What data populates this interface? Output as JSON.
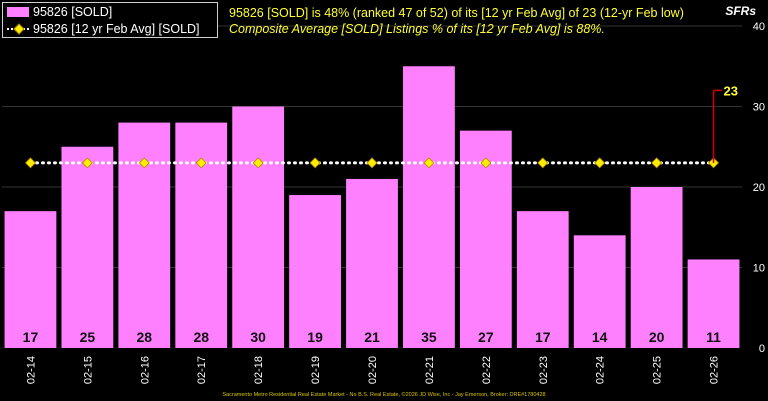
{
  "legend": {
    "bar_label": "95826 [SOLD]",
    "line_label": "95826 [12 yr Feb Avg] [SOLD]"
  },
  "header": {
    "line1": "95826 [SOLD] is 48% (ranked 47 of 52) of its [12 yr Feb Avg] of 23 (12-yr Feb low)",
    "line2": "Composite Average [SOLD] Listings % of its [12 yr Feb Avg] is 88%."
  },
  "axis": {
    "ylabel": "SFRs"
  },
  "footer": "Sacramento Metro Residential Real Estate Market - No B.S. Real Estate, ©2026 JD Wise, Inc - Jay Emerson, Broker: DRE#1780428",
  "colors": {
    "bar": "#ff80ff",
    "avg_marker": "#ffee00",
    "avg_line": "#ffffff",
    "annotation": "#cc0000",
    "annotation_text": "#ffff33",
    "grid": "#333333"
  },
  "chart_data": {
    "type": "bar",
    "categories": [
      "02-14",
      "02-15",
      "02-16",
      "02-17",
      "02-18",
      "02-19",
      "02-20",
      "02-21",
      "02-22",
      "02-23",
      "02-24",
      "02-25",
      "02-26"
    ],
    "series": [
      {
        "name": "95826 [SOLD]",
        "values": [
          17,
          25,
          28,
          28,
          30,
          19,
          21,
          35,
          27,
          17,
          14,
          20,
          11
        ]
      },
      {
        "name": "95826 [12 yr Feb Avg] [SOLD]",
        "values": [
          23,
          23,
          23,
          23,
          23,
          23,
          23,
          23,
          23,
          23,
          23,
          23,
          23
        ]
      }
    ],
    "ylim": [
      0,
      40
    ],
    "yticks": [
      0,
      10,
      20,
      30,
      40
    ],
    "ylabel": "SFRs",
    "grid": true,
    "legend_position": "top-left",
    "annotation": {
      "category": "02-26",
      "label": "23"
    }
  }
}
